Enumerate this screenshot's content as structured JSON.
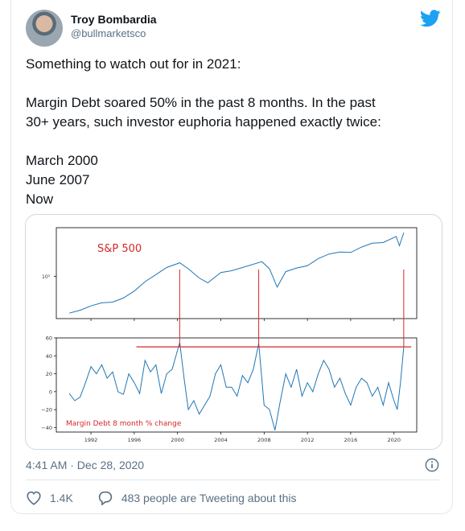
{
  "author": {
    "name": "Troy Bombardia",
    "handle": "@bullmarketsco",
    "avatar_icon": "avatar-photo"
  },
  "tweet": {
    "lines": [
      "Something to watch out for in 2021:",
      "",
      "Margin Debt soared 50% in the past 8 months. In the past",
      "30+ years, such investor euphoria happened exactly twice:",
      "",
      "March 2000",
      "June 2007",
      "Now"
    ]
  },
  "meta": {
    "timestamp": "4:41 AM · Dec 28, 2020"
  },
  "actions": {
    "likes": "1.4K",
    "tweeting": "483 people are Tweeting about this"
  },
  "colors": {
    "line": "#1f77b4",
    "marker": "#d62728",
    "twitter": "#1da1f2"
  },
  "chart_data": [
    {
      "type": "line",
      "title": "S&P 500",
      "yscale": "log",
      "yticks": [
        "10³"
      ],
      "x": [
        1990.0,
        1991,
        1992,
        1993,
        1994,
        1995,
        1996,
        1997,
        1998,
        1999,
        2000.2,
        2001,
        2002,
        2002.8,
        2004,
        2005,
        2006,
        2007.8,
        2008.5,
        2009.2,
        2010,
        2011,
        2012,
        2013,
        2014,
        2015,
        2016,
        2017,
        2018,
        2019,
        2020.2,
        2020.5,
        2020.9
      ],
      "values": [
        330,
        360,
        410,
        450,
        460,
        520,
        640,
        850,
        1050,
        1300,
        1500,
        1250,
        950,
        820,
        1120,
        1180,
        1300,
        1550,
        1250,
        720,
        1150,
        1280,
        1370,
        1700,
        1950,
        2070,
        2040,
        2400,
        2700,
        2750,
        3300,
        2500,
        3700
      ],
      "grid": false
    },
    {
      "type": "line",
      "title": "Margin Debt 8 month % change",
      "xticks": [
        "1992",
        "1996",
        "2000",
        "2004",
        "2008",
        "2012",
        "2016",
        "2020"
      ],
      "yticks": [
        "60",
        "40",
        "20",
        "0",
        "−20",
        "−40"
      ],
      "ylim": [
        -45,
        60
      ],
      "x": [
        1990.0,
        1990.5,
        1991.0,
        1991.5,
        1992.0,
        1992.5,
        1993.0,
        1993.5,
        1994.0,
        1994.5,
        1995.0,
        1995.5,
        1996.0,
        1996.5,
        1997.0,
        1997.5,
        1998.0,
        1998.5,
        1999.0,
        1999.5,
        2000.2,
        2000.6,
        2001.0,
        2001.5,
        2002.0,
        2002.5,
        2003.0,
        2003.5,
        2004.0,
        2004.5,
        2005.0,
        2005.5,
        2006.0,
        2006.5,
        2007.0,
        2007.5,
        2008.0,
        2008.5,
        2009.0,
        2009.5,
        2010.0,
        2010.5,
        2011.0,
        2011.5,
        2012.0,
        2012.5,
        2013.0,
        2013.5,
        2014.0,
        2014.5,
        2015.0,
        2015.5,
        2016.0,
        2016.5,
        2017.0,
        2017.5,
        2018.0,
        2018.5,
        2019.0,
        2019.5,
        2020.0,
        2020.3,
        2020.6,
        2020.9
      ],
      "values": [
        -2,
        -10,
        -6,
        10,
        28,
        20,
        30,
        15,
        22,
        0,
        -3,
        20,
        10,
        -2,
        35,
        22,
        30,
        -2,
        20,
        25,
        55,
        15,
        -20,
        -10,
        -25,
        -15,
        -5,
        20,
        30,
        5,
        5,
        -5,
        18,
        10,
        25,
        54,
        -15,
        -20,
        -43,
        -10,
        20,
        5,
        25,
        -5,
        10,
        0,
        20,
        35,
        25,
        5,
        15,
        -2,
        -15,
        5,
        15,
        10,
        -5,
        5,
        -15,
        10,
        -10,
        -20,
        10,
        50
      ],
      "threshold": 50,
      "grid": false
    }
  ]
}
